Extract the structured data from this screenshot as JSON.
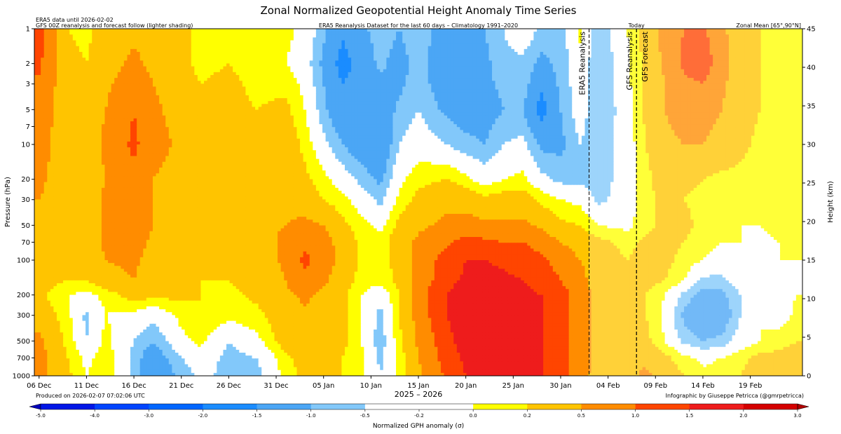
{
  "chart_data": {
    "type": "heatmap",
    "title": "Zonal Normalized Geopotential Height Anomaly Time Series",
    "subtitle_center": "ERA5 Reanalysis Dataset for the last 60 days – Climatology 1991–2020",
    "note_left_1": "ERA5 data until 2026-02-02",
    "note_left_2": "GFS 00Z reanalysis and forecast follow (lighter shading)",
    "note_right": "Zonal Mean [65°,90°N]",
    "today_label": "Today",
    "xlabel": "2025 – 2026",
    "ylabel": "Pressure (hPa)",
    "ylabel_right": "Height (km)",
    "produced": "Produced on 2026-02-07 07:02:06 UTC",
    "credit": "Infographic by Giuseppe Petricca (@gmrpetricca)",
    "colorbar_label": "Normalized GPH anomaly (σ)",
    "x_ticks": [
      "06 Dec",
      "11 Dec",
      "16 Dec",
      "21 Dec",
      "26 Dec",
      "31 Dec",
      "05 Jan",
      "10 Jan",
      "15 Jan",
      "20 Jan",
      "25 Jan",
      "30 Jan",
      "04 Feb",
      "09 Feb",
      "14 Feb",
      "19 Feb"
    ],
    "x_tick_days": [
      0,
      5,
      10,
      15,
      20,
      25,
      30,
      35,
      40,
      45,
      50,
      55,
      60,
      65,
      70,
      75
    ],
    "x_range_days": [
      -0.5,
      80.5
    ],
    "y_range_hpa": [
      1000,
      1
    ],
    "y_ticks_hpa": [
      1,
      2,
      3,
      5,
      7,
      10,
      20,
      30,
      50,
      70,
      100,
      200,
      300,
      500,
      700,
      1000
    ],
    "y_ticks_km": [
      0,
      5,
      10,
      15,
      20,
      25,
      30,
      35,
      40,
      45
    ],
    "y_range_km": [
      0,
      45
    ],
    "markers": [
      {
        "label": "ERA5 Reanalysis",
        "day": 58
      },
      {
        "label": "GFS Reanalysis",
        "day": 63
      },
      {
        "label": "GFS Forecast",
        "day": 63
      }
    ],
    "levels": [
      -5.0,
      -4.0,
      -3.0,
      -2.0,
      -1.5,
      -1.0,
      -0.5,
      -0.2,
      0.0,
      0.2,
      0.5,
      1.0,
      1.5,
      2.0,
      3.0,
      4.0,
      5.0
    ],
    "level_labels": [
      "-5.0",
      "-4.0",
      "-3.0",
      "-2.0",
      "-1.5",
      "-1.0",
      "-0.5",
      "-0.2",
      "0.0",
      "0.2",
      "0.5",
      "1.0",
      "1.5",
      "2.0",
      "3.0",
      "4.0",
      "5.0"
    ],
    "colors": [
      "#0000bb",
      "#0016e6",
      "#0044ff",
      "#0066ff",
      "#1a8cff",
      "#4ba6f5",
      "#82c8fa",
      "#ffffff",
      "#ffffff",
      "#ffff00",
      "#ffc400",
      "#ff8c00",
      "#ff4500",
      "#ee1c1c",
      "#d40000",
      "#b00000"
    ],
    "columns_days": [
      0,
      3,
      5,
      7,
      10,
      12,
      15,
      17,
      20,
      23,
      26,
      28,
      30,
      32,
      34,
      36,
      38,
      40,
      43,
      45,
      47,
      49,
      51,
      53,
      55,
      57,
      59,
      62,
      64,
      66,
      68,
      70,
      72,
      74,
      76,
      78,
      80
    ],
    "rows_hpa": [
      1,
      2,
      3,
      5,
      10,
      20,
      30,
      50,
      70,
      100,
      150,
      200,
      300,
      500,
      700,
      1000
    ],
    "values": [
      [
        1.7,
        0.5,
        0.4,
        0.7,
        0.9,
        0.8,
        0.6,
        0.4,
        0.5,
        0.3,
        0.3,
        0.1,
        -0.4,
        -0.9,
        -0.6,
        -0.3,
        -0.5,
        -0.2,
        -0.8,
        -0.6,
        -0.5,
        -0.2,
        0.1,
        -0.3,
        -0.4,
        0.3,
        -0.5,
        0.2,
        0.7,
        1.2,
        1.5,
        1.6,
        1.1,
        0.7,
        0.5,
        0.4,
        0.4
      ],
      [
        1.6,
        0.6,
        0.5,
        0.8,
        1.1,
        0.9,
        0.6,
        0.4,
        0.5,
        0.3,
        0.2,
        0.0,
        -0.6,
        -1.2,
        -0.8,
        -0.4,
        -0.7,
        -0.3,
        -1.0,
        -0.8,
        -0.6,
        -0.3,
        -0.3,
        -0.6,
        -0.4,
        0.1,
        -0.5,
        0.1,
        0.6,
        1.1,
        1.6,
        1.8,
        1.2,
        0.7,
        0.5,
        0.4,
        0.4
      ],
      [
        1.4,
        0.7,
        0.6,
        0.9,
        1.3,
        1.0,
        0.7,
        0.5,
        0.6,
        0.4,
        0.4,
        0.1,
        -0.5,
        -1.0,
        -0.8,
        -0.6,
        -0.6,
        -0.3,
        -0.8,
        -0.7,
        -0.6,
        -0.4,
        -0.3,
        -0.9,
        -0.4,
        0.0,
        -0.5,
        0.1,
        0.6,
        1.0,
        1.4,
        1.5,
        1.1,
        0.7,
        0.5,
        0.4,
        0.4
      ],
      [
        1.3,
        0.7,
        0.7,
        1.0,
        1.5,
        1.1,
        0.8,
        0.6,
        0.6,
        0.5,
        0.6,
        0.2,
        -0.4,
        -0.9,
        -0.9,
        -0.8,
        -0.4,
        -0.2,
        -0.6,
        -0.7,
        -0.7,
        -0.5,
        -0.5,
        -1.2,
        -0.5,
        0.0,
        -0.5,
        0.0,
        0.6,
        1.0,
        1.2,
        1.2,
        1.0,
        0.7,
        0.5,
        0.4,
        0.4
      ],
      [
        1.2,
        0.7,
        0.7,
        1.1,
        1.6,
        1.2,
        0.9,
        0.7,
        0.7,
        0.6,
        0.8,
        0.4,
        -0.1,
        -0.5,
        -0.8,
        -0.9,
        -0.2,
        0.0,
        -0.2,
        -0.4,
        -0.5,
        -0.2,
        -0.1,
        -0.6,
        -0.6,
        -0.2,
        -0.4,
        0.0,
        0.5,
        0.9,
        1.0,
        1.0,
        0.8,
        0.6,
        0.4,
        0.4,
        0.4
      ],
      [
        1.1,
        0.7,
        0.7,
        1.0,
        1.4,
        1.0,
        0.8,
        0.7,
        0.7,
        0.7,
        0.8,
        0.6,
        0.3,
        0.0,
        -0.3,
        -0.6,
        0.1,
        0.4,
        0.5,
        0.3,
        0.0,
        0.2,
        0.3,
        -0.1,
        -0.3,
        -0.3,
        -0.4,
        0.0,
        0.4,
        0.7,
        0.6,
        0.5,
        0.4,
        0.4,
        0.4,
        0.3,
        0.3
      ],
      [
        1.0,
        0.8,
        0.7,
        1.1,
        1.3,
        1.0,
        0.8,
        0.7,
        0.7,
        0.8,
        0.9,
        0.8,
        0.5,
        0.3,
        0.0,
        -0.3,
        0.3,
        0.6,
        0.9,
        0.8,
        0.6,
        0.7,
        0.7,
        0.4,
        0.2,
        0.1,
        -0.3,
        0.0,
        0.4,
        0.6,
        0.5,
        0.4,
        0.3,
        0.3,
        0.3,
        0.3,
        0.3
      ],
      [
        0.9,
        0.8,
        0.7,
        1.1,
        1.3,
        1.0,
        0.7,
        0.7,
        0.7,
        0.9,
        1.0,
        1.1,
        1.0,
        0.6,
        0.3,
        0.1,
        0.6,
        0.9,
        1.1,
        1.2,
        1.1,
        1.1,
        1.1,
        0.9,
        0.6,
        0.5,
        0.2,
        0.1,
        0.4,
        0.6,
        0.6,
        0.4,
        0.3,
        0.2,
        0.2,
        0.3,
        0.3
      ],
      [
        0.9,
        0.8,
        0.7,
        1.1,
        1.2,
        0.9,
        0.6,
        0.6,
        0.7,
        0.8,
        1.1,
        1.4,
        1.2,
        0.8,
        0.4,
        0.3,
        0.8,
        1.1,
        1.4,
        1.7,
        1.6,
        1.5,
        1.5,
        1.3,
        1.0,
        0.8,
        0.6,
        0.4,
        0.6,
        0.6,
        0.5,
        0.3,
        0.2,
        0.2,
        0.1,
        0.2,
        0.3
      ],
      [
        0.8,
        0.7,
        0.6,
        1.0,
        1.1,
        0.8,
        0.5,
        0.6,
        0.6,
        0.7,
        1.1,
        1.6,
        1.3,
        0.8,
        0.4,
        0.3,
        0.7,
        1.2,
        1.7,
        2.0,
        2.0,
        1.9,
        1.8,
        1.6,
        1.3,
        1.0,
        0.7,
        0.5,
        0.6,
        0.6,
        0.4,
        0.2,
        0.1,
        0.1,
        0.0,
        0.2,
        0.2
      ],
      [
        0.7,
        0.5,
        0.5,
        0.8,
        1.0,
        0.7,
        0.6,
        0.5,
        0.5,
        0.7,
        1.0,
        1.4,
        1.1,
        0.7,
        0.4,
        0.3,
        0.6,
        1.2,
        1.8,
        2.1,
        2.2,
        2.1,
        2.0,
        1.8,
        1.5,
        1.2,
        0.7,
        0.5,
        0.6,
        0.5,
        0.2,
        -0.3,
        -0.3,
        0.0,
        0.1,
        0.1,
        0.1
      ],
      [
        0.6,
        0.2,
        0.1,
        0.3,
        0.7,
        0.6,
        0.6,
        0.5,
        0.4,
        0.6,
        0.9,
        1.1,
        0.9,
        0.6,
        0.2,
        -0.1,
        0.5,
        1.3,
        2.0,
        2.4,
        2.4,
        2.3,
        2.1,
        2.0,
        1.7,
        1.3,
        0.8,
        0.6,
        0.5,
        0.2,
        -0.3,
        -0.7,
        -0.6,
        -0.2,
        0.0,
        0.1,
        0.2
      ],
      [
        0.8,
        0.3,
        -0.3,
        0.2,
        0.1,
        -0.1,
        0.3,
        0.5,
        0.3,
        0.4,
        0.8,
        0.9,
        0.8,
        0.6,
        0.2,
        -0.3,
        0.5,
        1.2,
        2.0,
        2.5,
        2.4,
        2.4,
        2.1,
        2.0,
        1.7,
        1.3,
        0.8,
        0.6,
        0.5,
        0.1,
        -0.6,
        -0.9,
        -0.8,
        -0.2,
        0.2,
        0.0,
        0.3
      ],
      [
        1.1,
        0.4,
        -0.2,
        0.3,
        -0.2,
        -0.5,
        0.1,
        0.3,
        -0.2,
        0.1,
        0.7,
        0.8,
        0.7,
        0.6,
        0.2,
        -0.4,
        0.4,
        1.1,
        1.8,
        2.3,
        2.3,
        2.4,
        2.3,
        2.0,
        1.7,
        1.3,
        0.8,
        0.7,
        0.6,
        0.2,
        -0.3,
        -0.5,
        -0.4,
        0.0,
        0.2,
        0.4,
        0.5
      ],
      [
        1.2,
        0.5,
        0.1,
        0.4,
        -0.3,
        -0.8,
        -0.2,
        0.0,
        -0.3,
        -0.2,
        0.4,
        0.7,
        0.6,
        0.5,
        0.3,
        -0.3,
        0.3,
        1.0,
        1.7,
        2.1,
        2.2,
        2.3,
        2.2,
        2.0,
        1.7,
        1.3,
        0.8,
        0.8,
        0.9,
        0.6,
        0.3,
        0.1,
        0.2,
        0.4,
        0.6,
        0.6,
        0.6
      ],
      [
        1.2,
        0.6,
        0.2,
        0.4,
        -0.3,
        -0.9,
        -0.4,
        -0.1,
        -0.3,
        -0.3,
        0.3,
        0.6,
        0.6,
        0.5,
        0.3,
        -0.2,
        0.3,
        0.9,
        1.6,
        2.0,
        2.1,
        2.2,
        2.2,
        2.0,
        1.7,
        1.2,
        0.8,
        0.9,
        1.1,
        0.8,
        0.5,
        0.3,
        0.4,
        0.5,
        0.7,
        0.7,
        0.6
      ]
    ]
  }
}
